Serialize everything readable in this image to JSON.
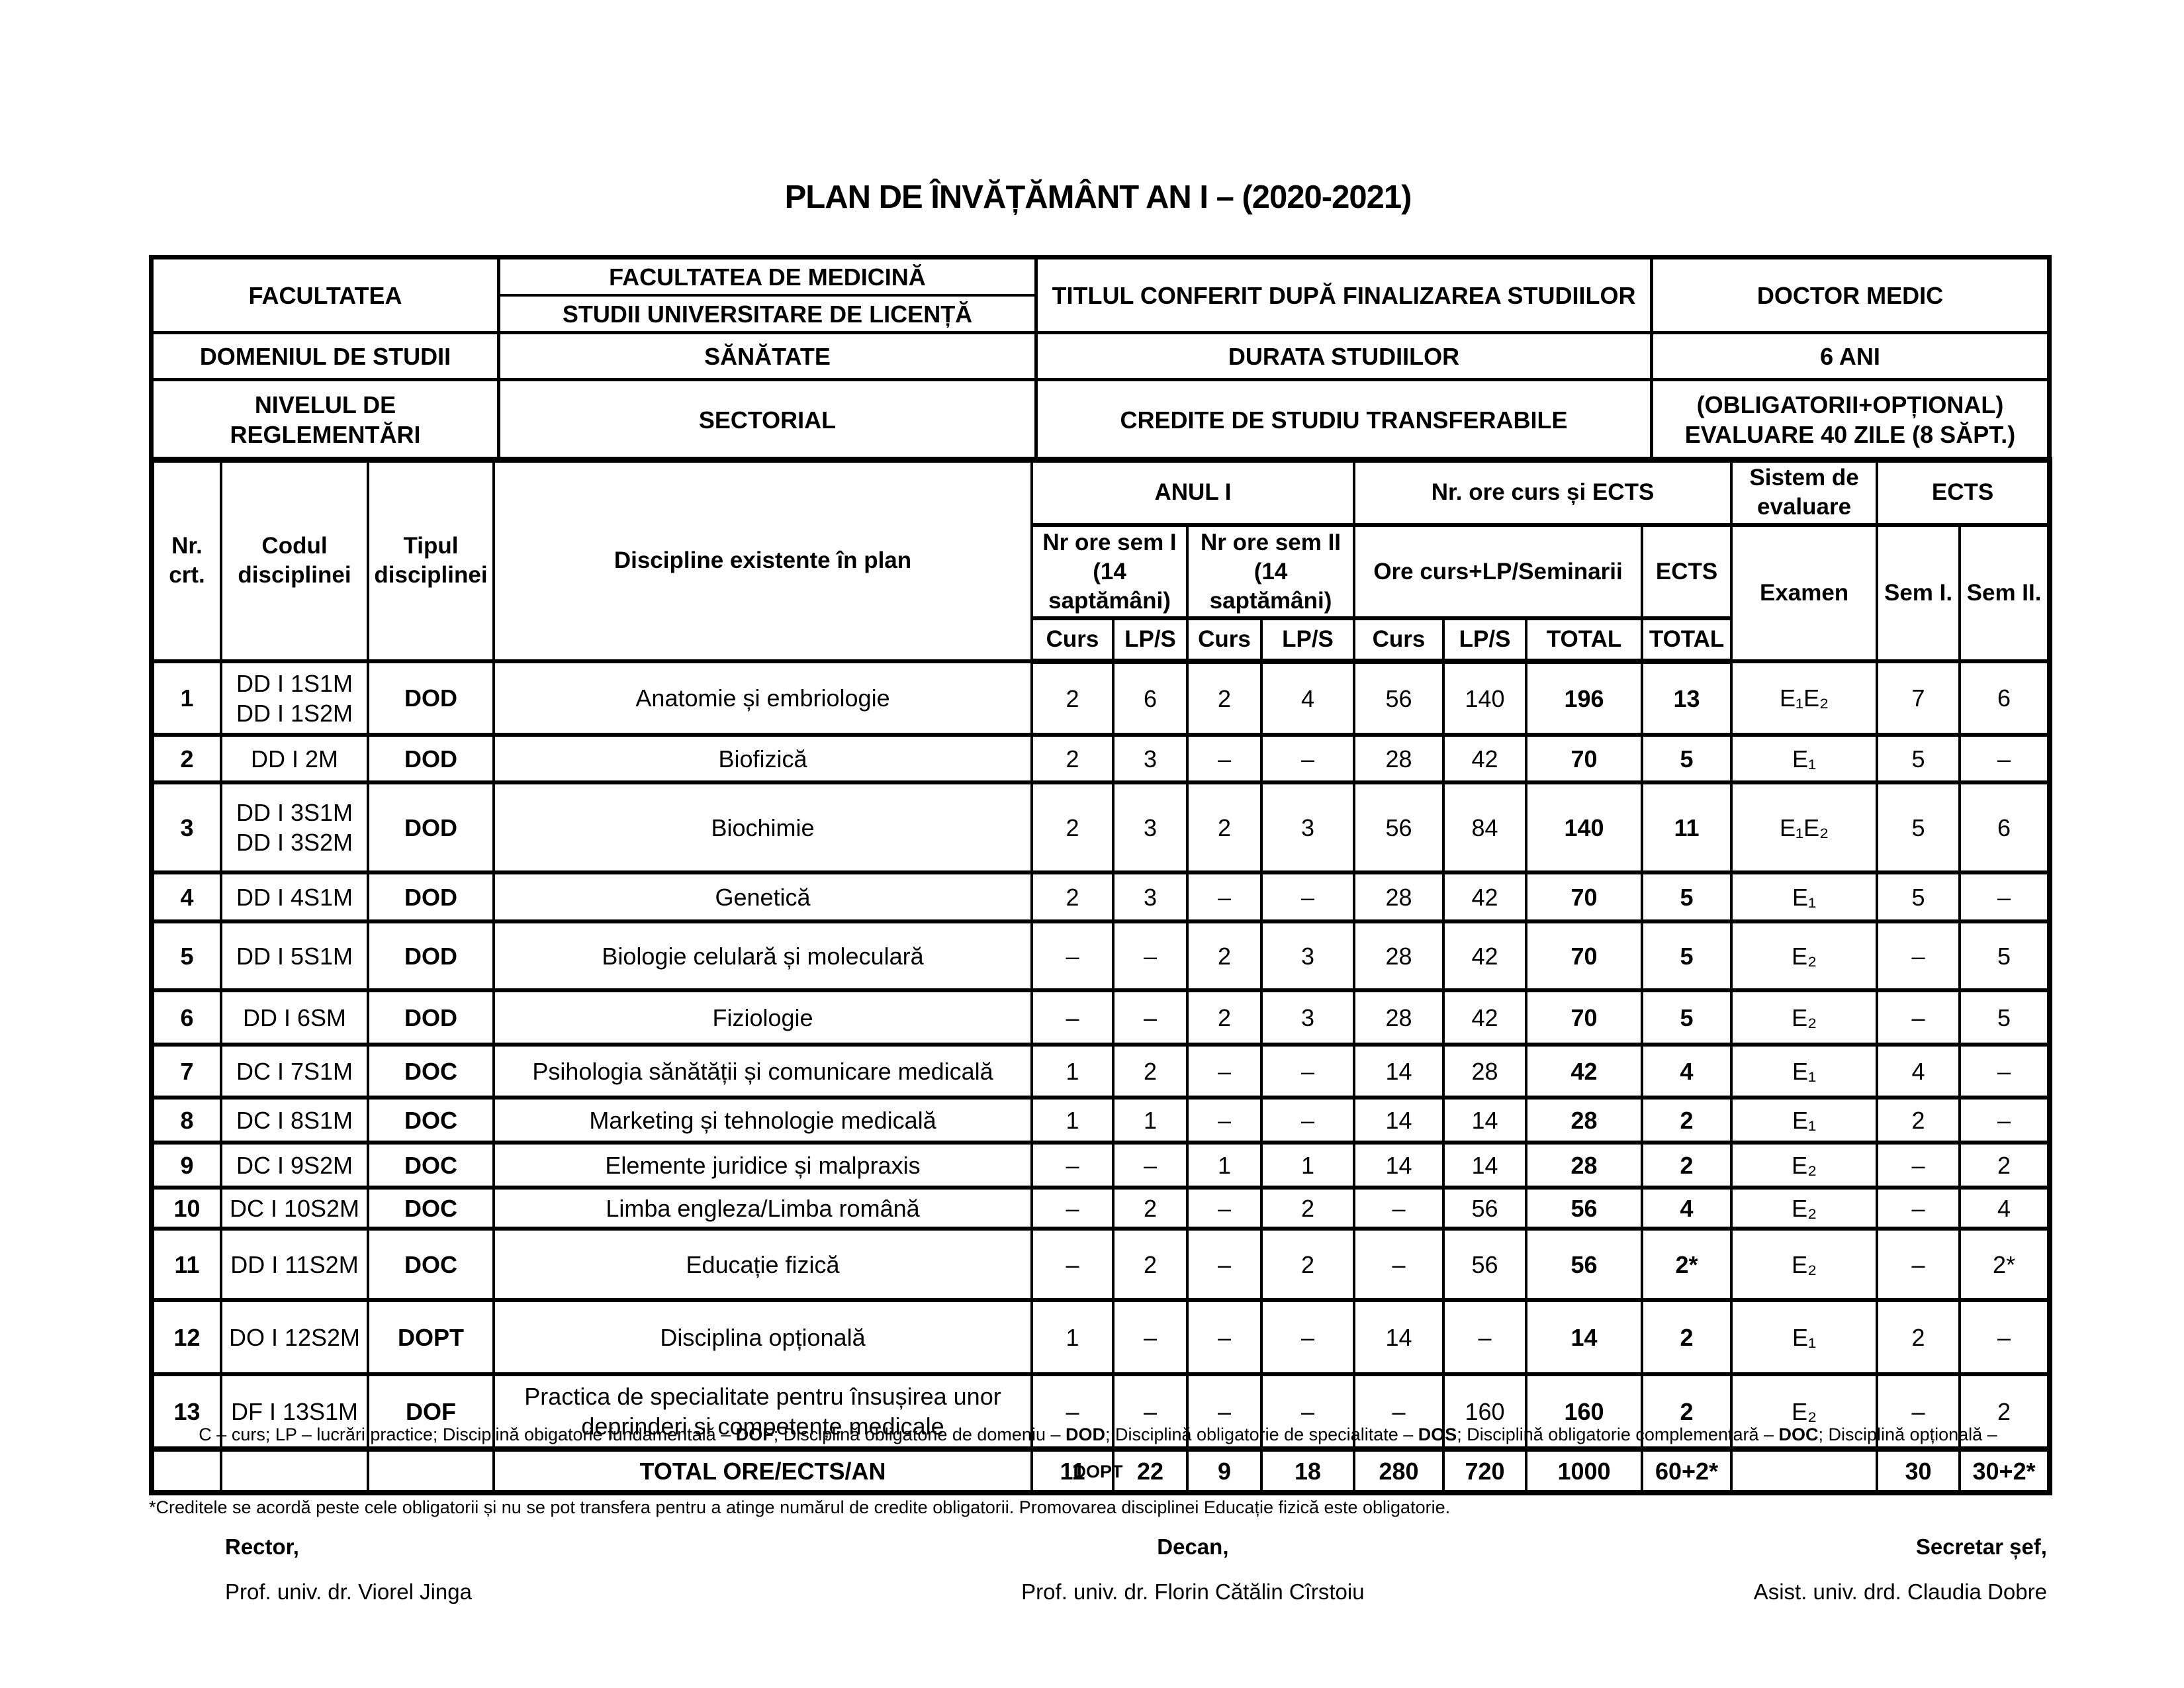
{
  "title": "PLAN DE ÎNVĂȚĂMÂNT AN I – (2020-2021)",
  "info": {
    "facultatea_label": "FACULTATEA",
    "facultatea_value_top": "FACULTATEA DE MEDICINĂ",
    "facultatea_value_bottom": "STUDII UNIVERSITARE DE LICENȚĂ",
    "titlu_label": "TITLUL CONFERIT DUPĂ FINALIZAREA STUDIILOR",
    "titlu_value": "DOCTOR MEDIC",
    "domeniu_label": "DOMENIUL DE STUDII",
    "domeniu_value": "SĂNĂTATE",
    "durata_label": "DURATA STUDIILOR",
    "durata_value": "6 ANI",
    "nivel_label": "NIVELUL DE REGLEMENTĂRI",
    "nivel_value": "SECTORIAL",
    "credite_label": "CREDITE DE STUDIU TRANSFERABILE",
    "credite_value": "(OBLIGATORII+OPȚIONAL)\nEVALUARE 40 ZILE (8 SĂPT.)"
  },
  "table": {
    "header": {
      "nr": "Nr.\ncrt.",
      "code": "Codul\ndisciplinei",
      "type": "Tipul\ndisciplinei",
      "name": "Discipline existente în plan",
      "group_year": "ANUL I",
      "group_hours": "Nr. ore curs și ECTS",
      "group_eval": "Sistem de\nevaluare",
      "group_ects": "ECTS",
      "sem1": "Nr ore sem I\n(14 saptămâni)",
      "sem2": "Nr ore sem II\n(14 saptămâni)",
      "hours": "Ore curs+LP/Seminarii",
      "ects": "ECTS",
      "exam": "Examen",
      "ects_sem1": "Sem I.",
      "ects_sem2": "Sem II.",
      "curs1": "Curs",
      "lps1": "LP/S",
      "curs2": "Curs",
      "lps2": "LP/S",
      "curs3": "Curs",
      "lps3": "LP/S",
      "total_hours": "TOTAL",
      "total_ects": "TOTAL"
    },
    "rows": [
      {
        "nr": "1",
        "code": "DD I 1S1M\nDD I 1S2M",
        "type": "DOD",
        "name": "Anatomie și embriologie",
        "s1c": "2",
        "s1l": "6",
        "s2c": "2",
        "s2l": "4",
        "oc": "56",
        "ol": "140",
        "tot": "196",
        "ects": "13",
        "exam": "E₁E₂",
        "es1": "7",
        "es2": "6"
      },
      {
        "nr": "2",
        "code": "DD I 2M",
        "type": "DOD",
        "name": "Biofizică",
        "s1c": "2",
        "s1l": "3",
        "s2c": "–",
        "s2l": "–",
        "oc": "28",
        "ol": "42",
        "tot": "70",
        "ects": "5",
        "exam": "E₁",
        "es1": "5",
        "es2": "–"
      },
      {
        "nr": "3",
        "code": "DD I 3S1M\nDD I 3S2M",
        "type": "DOD",
        "name": "Biochimie",
        "s1c": "2",
        "s1l": "3",
        "s2c": "2",
        "s2l": "3",
        "oc": "56",
        "ol": "84",
        "tot": "140",
        "ects": "11",
        "exam": "E₁E₂",
        "es1": "5",
        "es2": "6"
      },
      {
        "nr": "4",
        "code": "DD I 4S1M",
        "type": "DOD",
        "name": "Genetică",
        "s1c": "2",
        "s1l": "3",
        "s2c": "–",
        "s2l": "–",
        "oc": "28",
        "ol": "42",
        "tot": "70",
        "ects": "5",
        "exam": "E₁",
        "es1": "5",
        "es2": "–"
      },
      {
        "nr": "5",
        "code": "DD I 5S1M",
        "type": "DOD",
        "name": "Biologie celulară și moleculară",
        "s1c": "–",
        "s1l": "–",
        "s2c": "2",
        "s2l": "3",
        "oc": "28",
        "ol": "42",
        "tot": "70",
        "ects": "5",
        "exam": "E₂",
        "es1": "–",
        "es2": "5"
      },
      {
        "nr": "6",
        "code": "DD I 6SM",
        "type": "DOD",
        "name": "Fiziologie",
        "s1c": "–",
        "s1l": "–",
        "s2c": "2",
        "s2l": "3",
        "oc": "28",
        "ol": "42",
        "tot": "70",
        "ects": "5",
        "exam": "E₂",
        "es1": "–",
        "es2": "5"
      },
      {
        "nr": "7",
        "code": "DC I 7S1M",
        "type": "DOC",
        "name": "Psihologia sănătății și comunicare medicală",
        "s1c": "1",
        "s1l": "2",
        "s2c": "–",
        "s2l": "–",
        "oc": "14",
        "ol": "28",
        "tot": "42",
        "ects": "4",
        "exam": "E₁",
        "es1": "4",
        "es2": "–"
      },
      {
        "nr": "8",
        "code": "DC I 8S1M",
        "type": "DOC",
        "name": "Marketing și tehnologie medicală",
        "s1c": "1",
        "s1l": "1",
        "s2c": "–",
        "s2l": "–",
        "oc": "14",
        "ol": "14",
        "tot": "28",
        "ects": "2",
        "exam": "E₁",
        "es1": "2",
        "es2": "–"
      },
      {
        "nr": "9",
        "code": "DC I 9S2M",
        "type": "DOC",
        "name": "Elemente juridice și malpraxis",
        "s1c": "–",
        "s1l": "–",
        "s2c": "1",
        "s2l": "1",
        "oc": "14",
        "ol": "14",
        "tot": "28",
        "ects": "2",
        "exam": "E₂",
        "es1": "–",
        "es2": "2"
      },
      {
        "nr": "10",
        "code": "DC I 10S2M",
        "type": "DOC",
        "name": "Limba engleza/Limba română",
        "s1c": "–",
        "s1l": "2",
        "s2c": "–",
        "s2l": "2",
        "oc": "–",
        "ol": "56",
        "tot": "56",
        "ects": "4",
        "exam": "E₂",
        "es1": "–",
        "es2": "4"
      },
      {
        "nr": "11",
        "code": "DD I 11S2M",
        "type": "DOC",
        "name": "Educație fizică",
        "s1c": "–",
        "s1l": "2",
        "s2c": "–",
        "s2l": "2",
        "oc": "–",
        "ol": "56",
        "tot": "56",
        "ects": "2*",
        "exam": "E₂",
        "es1": "–",
        "es2": "2*"
      },
      {
        "nr": "12",
        "code": "DO I 12S2M",
        "type": "DOPT",
        "name": "Disciplina opțională",
        "s1c": "1",
        "s1l": "–",
        "s2c": "–",
        "s2l": "–",
        "oc": "14",
        "ol": "–",
        "tot": "14",
        "ects": "2",
        "exam": "E₁",
        "es1": "2",
        "es2": "–"
      },
      {
        "nr": "13",
        "code": "DF I 13S1M",
        "type": "DOF",
        "name": "Practica de specialitate pentru însușirea unor deprinderi și competențe medicale",
        "s1c": "–",
        "s1l": "–",
        "s2c": "–",
        "s2l": "–",
        "oc": "–",
        "ol": "160",
        "tot": "160",
        "ects": "2",
        "exam": "E₂",
        "es1": "–",
        "es2": "2"
      }
    ],
    "totals": {
      "label": "TOTAL ORE/ECTS/AN",
      "s1c": "11",
      "s1l": "22",
      "s2c": "9",
      "s2l": "18",
      "oc": "280",
      "ol": "720",
      "tot": "1000",
      "ects": "60+2*",
      "exam": "",
      "es1": "30",
      "es2": "30+2*"
    }
  },
  "footnotes": {
    "legend_segments": [
      {
        "text": "C – curs; LP – lucrări practice; Disciplină obigatorie fundamentală – ",
        "bold": false
      },
      {
        "text": "DOF",
        "bold": true
      },
      {
        "text": "; Disciplină obligatorie de domeniu – ",
        "bold": false
      },
      {
        "text": "DOD",
        "bold": true
      },
      {
        "text": "; Disciplină obligatorie de specialitate – ",
        "bold": false
      },
      {
        "text": "DOS",
        "bold": true
      },
      {
        "text": "; Disciplină obligatorie complementară – ",
        "bold": false
      },
      {
        "text": "DOC",
        "bold": true
      },
      {
        "text": "; Disciplină opțională – ",
        "bold": false
      }
    ],
    "legend_line2": "DOPT",
    "credits": "*Creditele se acordă peste cele obligatorii și nu se pot transfera pentru a atinge numărul de credite obligatorii. Promovarea disciplinei Educație fizică este obligatorie."
  },
  "signatures": [
    {
      "role": "Rector,",
      "name": "Prof. univ. dr. Viorel Jinga"
    },
    {
      "role": "Decan,",
      "name": "Prof. univ. dr. Florin Cătălin Cîrstoiu"
    },
    {
      "role": "Secretar șef,",
      "name": "Asist. univ. drd. Claudia Dobre"
    }
  ]
}
